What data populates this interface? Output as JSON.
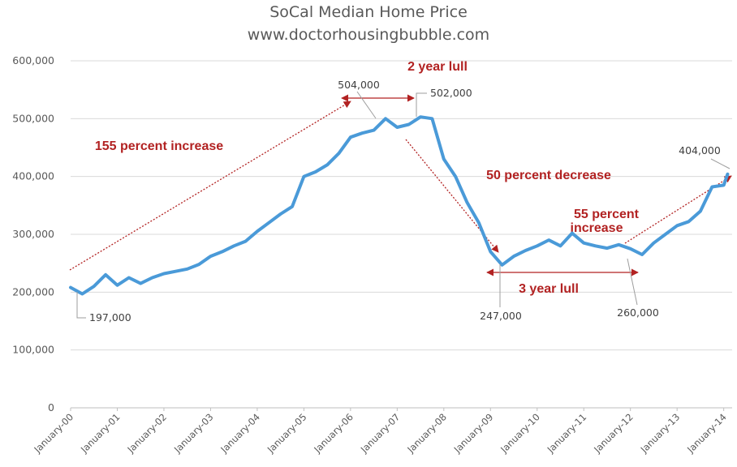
{
  "chart_data": {
    "type": "line",
    "title": "SoCal Median Home Price",
    "subtitle": "www.doctorhousingbubble.com",
    "xlabel": "",
    "ylabel": "",
    "ylim": [
      0,
      600000
    ],
    "yticks": [
      "0",
      "100,000",
      "200,000",
      "300,000",
      "400,000",
      "500,000",
      "600,000"
    ],
    "ytick_values": [
      0,
      100000,
      200000,
      300000,
      400000,
      500000,
      600000
    ],
    "xticks": [
      "January-00",
      "January-01",
      "January-02",
      "January-03",
      "January-04",
      "January-05",
      "January-06",
      "January-07",
      "January-08",
      "January-09",
      "January-10",
      "January-11",
      "January-12",
      "January-13",
      "January-14"
    ],
    "grid": "horizontal",
    "legend": "none",
    "series": [
      {
        "color": "#4a9ad8",
        "x": [
          "2000-01",
          "2000-04",
          "2000-07",
          "2000-10",
          "2001-01",
          "2001-04",
          "2001-07",
          "2001-10",
          "2002-01",
          "2002-04",
          "2002-07",
          "2002-10",
          "2003-01",
          "2003-04",
          "2003-07",
          "2003-10",
          "2004-01",
          "2004-04",
          "2004-07",
          "2004-10",
          "2005-01",
          "2005-04",
          "2005-07",
          "2005-10",
          "2006-01",
          "2006-04",
          "2006-07",
          "2006-10",
          "2007-01",
          "2007-04",
          "2007-07",
          "2007-10",
          "2008-01",
          "2008-04",
          "2008-07",
          "2008-10",
          "2009-01",
          "2009-04",
          "2009-07",
          "2009-10",
          "2010-01",
          "2010-04",
          "2010-07",
          "2010-10",
          "2011-01",
          "2011-04",
          "2011-07",
          "2011-10",
          "2012-01",
          "2012-04",
          "2012-07",
          "2012-10",
          "2013-01",
          "2013-04",
          "2013-07",
          "2013-10",
          "2014-01",
          "2014-02"
        ],
        "values": [
          208000,
          197000,
          210000,
          230000,
          212000,
          225000,
          215000,
          225000,
          232000,
          236000,
          240000,
          248000,
          262000,
          270000,
          280000,
          288000,
          305000,
          320000,
          335000,
          348000,
          400000,
          408000,
          420000,
          440000,
          468000,
          475000,
          480000,
          500000,
          485000,
          490000,
          503000,
          500000,
          430000,
          400000,
          355000,
          320000,
          270000,
          247000,
          262000,
          272000,
          280000,
          290000,
          280000,
          302000,
          285000,
          280000,
          276000,
          282000,
          275000,
          265000,
          285000,
          300000,
          315000,
          322000,
          340000,
          382000,
          385000,
          404000
        ]
      }
    ],
    "callouts": [
      {
        "label": "197,000",
        "x": "2000-04",
        "value": 197000
      },
      {
        "label": "504,000",
        "x": "2006-06",
        "value": 504000
      },
      {
        "label": "502,000",
        "x": "2007-06",
        "value": 502000
      },
      {
        "label": "247,000",
        "x": "2009-04",
        "value": 247000
      },
      {
        "label": "260,000",
        "x": "2012-01",
        "value": 260000
      },
      {
        "label": "404,000",
        "x": "2014-02",
        "value": 404000
      }
    ],
    "annotations": [
      {
        "text": "155 percent increase"
      },
      {
        "text": "2 year lull"
      },
      {
        "text": "50 percent decrease"
      },
      {
        "text": "55 percent"
      },
      {
        "text": "increase"
      },
      {
        "text": "3 year lull"
      }
    ]
  }
}
